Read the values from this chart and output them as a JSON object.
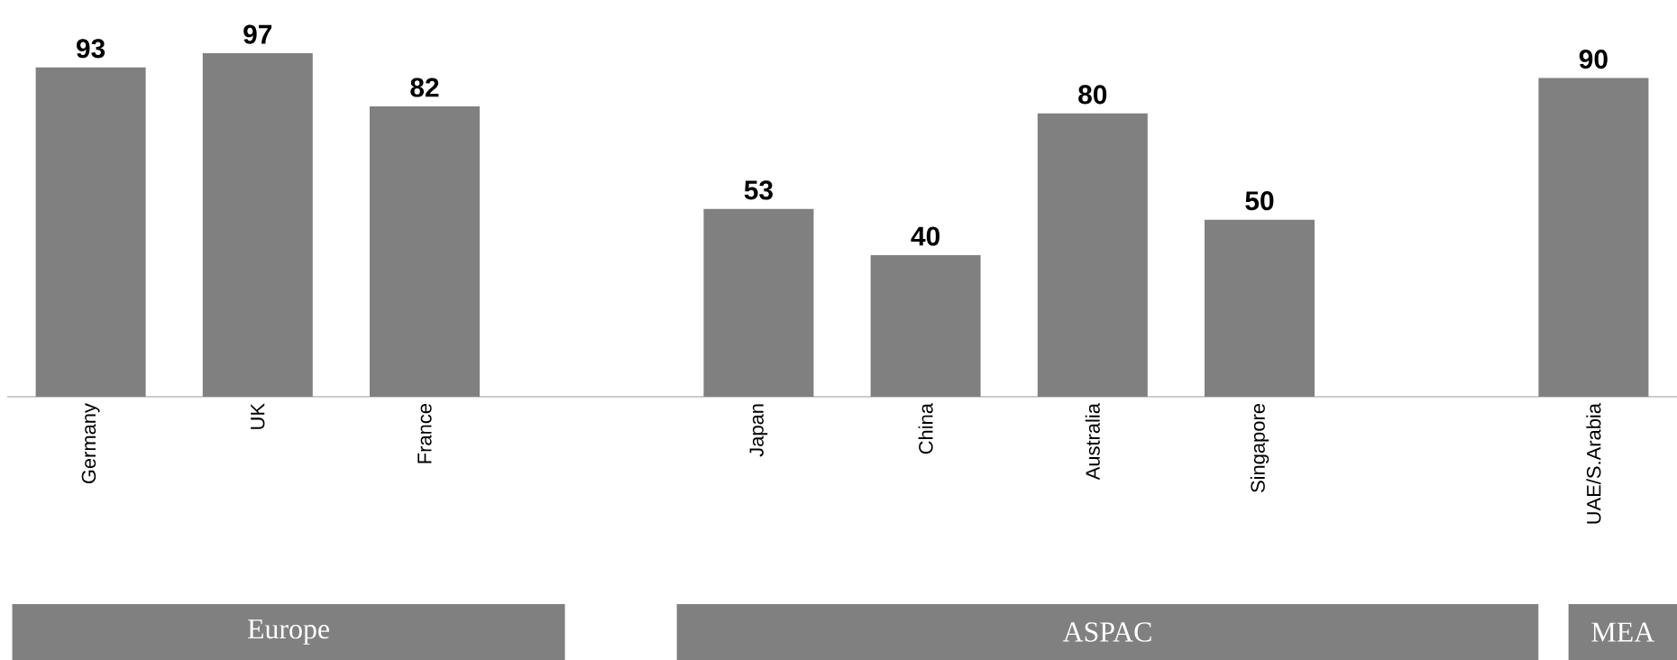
{
  "chart_data": {
    "type": "bar",
    "categories": [
      "Germany",
      "UK",
      "France",
      null,
      "Japan",
      "China",
      "Australia",
      "Singapore",
      null,
      "UAE/S.Arabia"
    ],
    "values": [
      93,
      97,
      82,
      null,
      53,
      40,
      80,
      50,
      null,
      90
    ],
    "color": "#808080",
    "data_labels": true,
    "annotations": [
      "Europe",
      "ASPAC",
      "MEA"
    ]
  }
}
